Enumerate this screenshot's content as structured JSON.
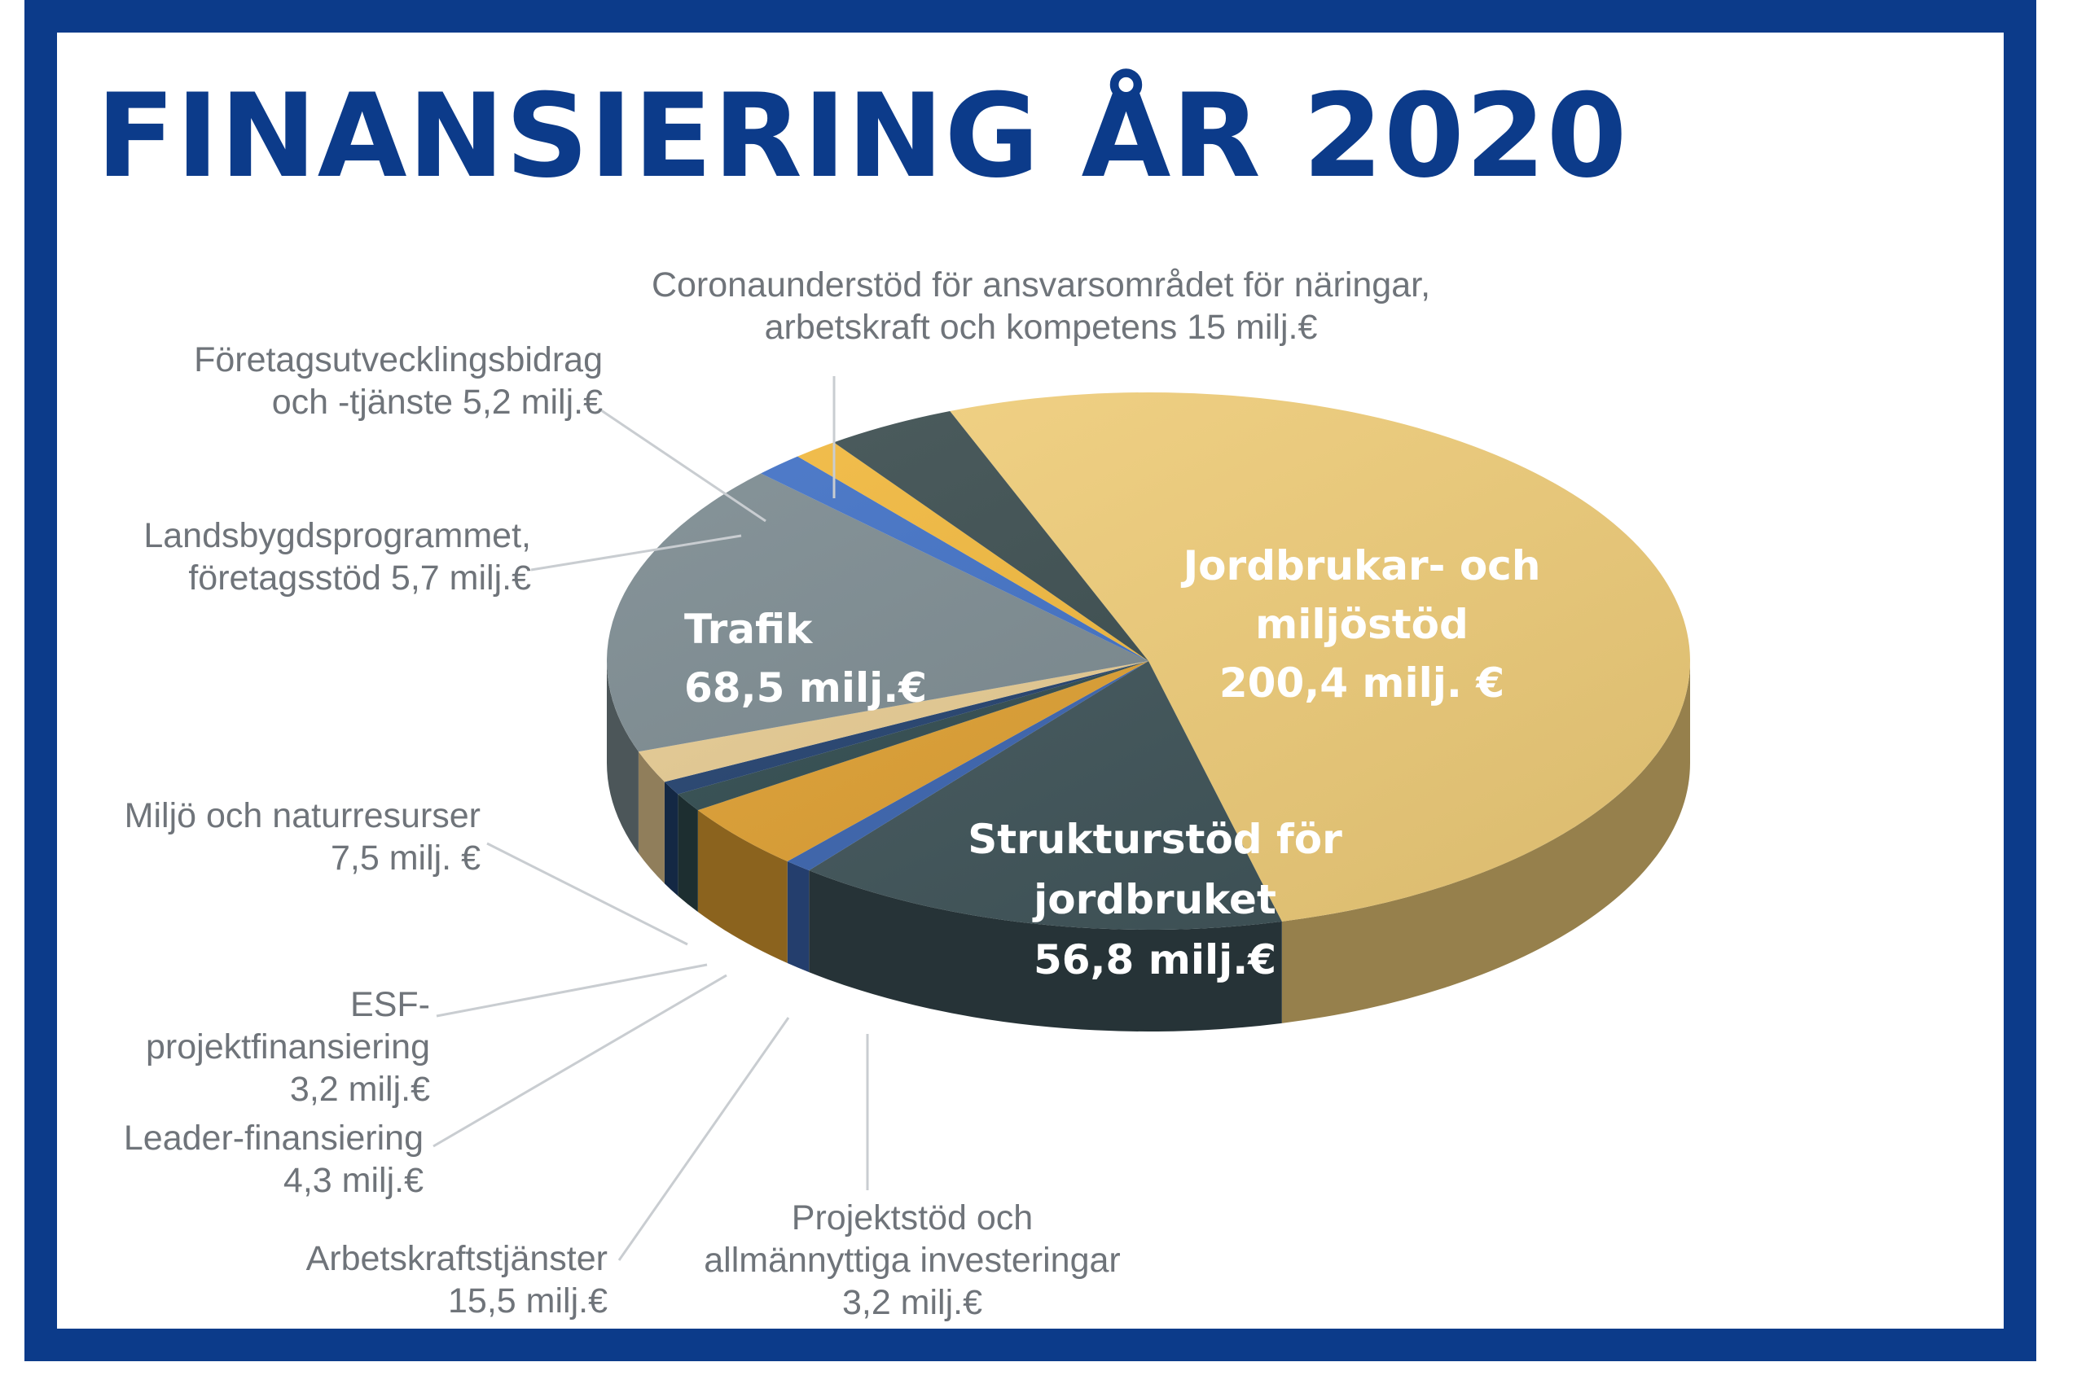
{
  "title": "FINANSIERING ÅR 2020",
  "chart_data": {
    "type": "pie",
    "style": "3d",
    "title": "FINANSIERING ÅR 2020",
    "unit": "milj. €",
    "slices": [
      {
        "name": "Jordbrukar- och miljöstöd",
        "value": 200.4,
        "label": [
          "Jordbrukar- och",
          "miljöstöd",
          "200,4 milj. €"
        ],
        "color": "#f2cf7a",
        "inside": true
      },
      {
        "name": "Strukturstöd för jordbruket",
        "value": 56.8,
        "label": [
          "Strukturstöd för",
          "jordbruket",
          "56,8 milj.€"
        ],
        "color": "#3e5358",
        "inside": true
      },
      {
        "name": "Projektstöd och allmännyttiga investeringar",
        "value": 3.2,
        "label": [
          "Projektstöd och",
          "allmännyttiga investeringar",
          "3,2 milj.€"
        ],
        "color": "#3a64b0",
        "inside": false
      },
      {
        "name": "Arbetskraftstjänster",
        "value": 15.5,
        "label": [
          "Arbetskraftstjänster",
          "15,5 milj.€"
        ],
        "color": "#e0a030",
        "inside": false
      },
      {
        "name": "Leader-finansiering",
        "value": 4.3,
        "label": [
          "Leader-finansiering",
          "4,3 milj.€"
        ],
        "color": "#2f4a4e",
        "inside": false
      },
      {
        "name": "ESF-projektfinansiering",
        "value": 3.2,
        "label": [
          "ESF-",
          "projektfinansiering",
          "3,2 milj.€"
        ],
        "color": "#21406e",
        "inside": false
      },
      {
        "name": "Miljö och naturresurser",
        "value": 7.5,
        "label": [
          "Miljö och naturresurser",
          "7,5 milj. €"
        ],
        "color": "#e8cc92",
        "inside": false
      },
      {
        "name": "Trafik",
        "value": 68.5,
        "label": [
          "Trafik",
          "68,5 milj.€"
        ],
        "color": "#7b8a90",
        "inside": true
      },
      {
        "name": "Landsbygdsprogrammet, företagsstöd",
        "value": 5.7,
        "label": [
          "Landsbygdsprogrammet,",
          "företagsstöd 5,7 milj.€"
        ],
        "color": "#3f70c6",
        "inside": false
      },
      {
        "name": "Företagsutvecklingsbidrag och -tjänste",
        "value": 5.2,
        "label": [
          "Företagsutvecklingsbidrag",
          "och -tjänste 5,2 milj.€"
        ],
        "color": "#f3b93c",
        "inside": false
      },
      {
        "name": "Coronaunderstöd för ansvarsområdet för näringar, arbetskraft och kompetens",
        "value": 15,
        "label": [
          "Coronaunderstöd för ansvarsområdet för näringar,",
          "arbetskraft och kompetens 15 milj.€"
        ],
        "color": "#3a4c4e",
        "inside": false
      }
    ],
    "legend": "none",
    "grid": false
  }
}
